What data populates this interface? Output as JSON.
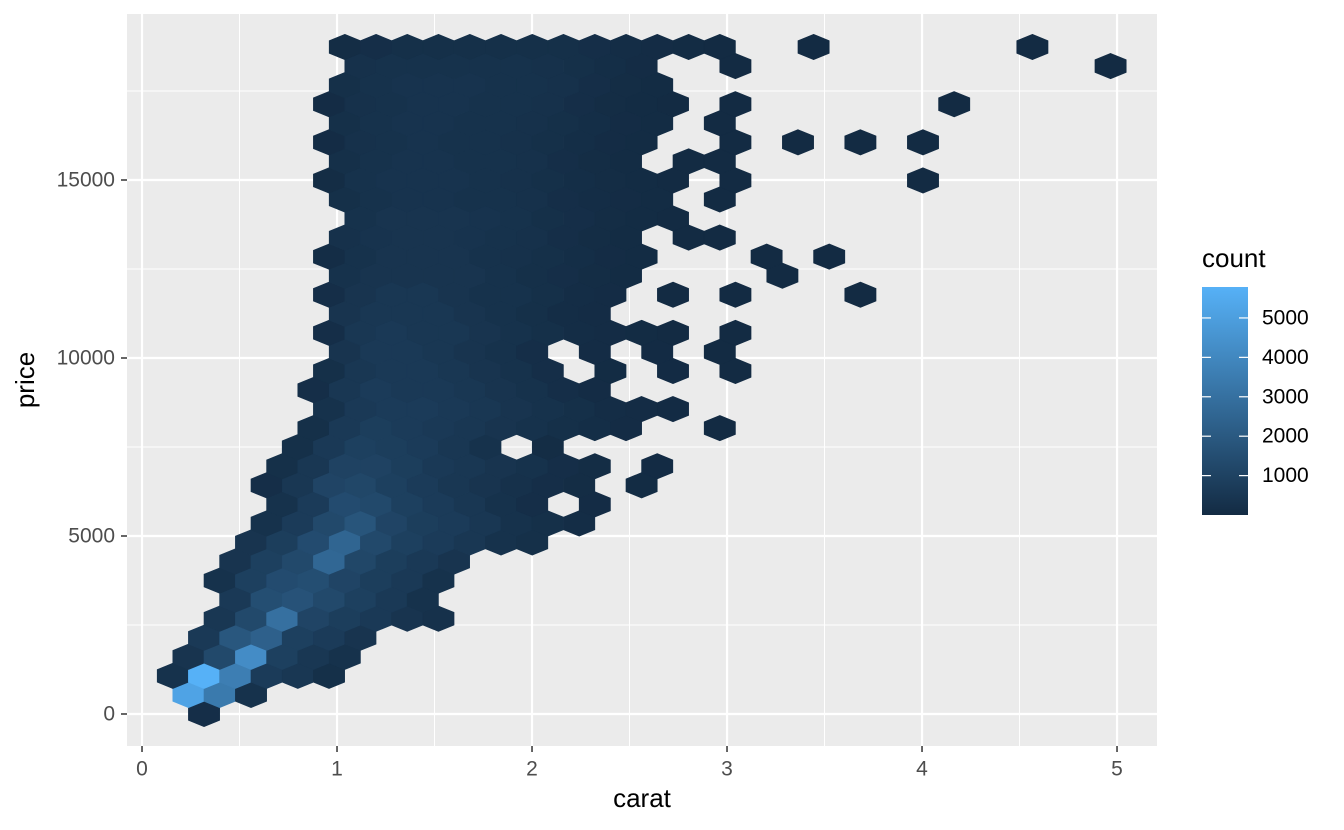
{
  "chart_data": {
    "type": "hexbin",
    "x_label": "carat",
    "y_label": "price",
    "xlim": [
      -0.077,
      5.205
    ],
    "ylim": [
      -899,
      19663
    ],
    "xticks": [
      0,
      1,
      2,
      3,
      4,
      5
    ],
    "yticks": [
      0,
      5000,
      10000,
      15000
    ],
    "xminor": [
      0.5,
      1.5,
      2.5,
      3.5,
      4.5
    ],
    "yminor": [
      2500,
      7500,
      12500,
      17500
    ],
    "grid": true,
    "panel_color": "#EBEBEB",
    "colors": {
      "low": "#132B43",
      "high": "#56B1F7"
    },
    "clim": [
      1,
      5785
    ],
    "legend": {
      "title": "count",
      "ticks": [
        1000,
        2000,
        3000,
        4000,
        5000
      ],
      "position": "right"
    },
    "rows": [
      {
        "y": 0,
        "x": [
          0.318
        ],
        "count": [
          150
        ]
      },
      {
        "y": 535,
        "x": [
          0.238,
          0.398,
          0.559
        ],
        "count": [
          5200,
          3400,
          300
        ]
      },
      {
        "y": 1071,
        "x": [
          0.158,
          0.318,
          0.478,
          0.639,
          0.799,
          0.959
        ],
        "count": [
          300,
          5785,
          3600,
          700,
          500,
          200
        ]
      },
      {
        "y": 1606,
        "x": [
          0.238,
          0.398,
          0.559,
          0.719,
          0.879,
          1.04
        ],
        "count": [
          400,
          1300,
          4200,
          900,
          500,
          300
        ]
      },
      {
        "y": 2141,
        "x": [
          0.318,
          0.478,
          0.639,
          0.799,
          0.959,
          1.12
        ],
        "count": [
          600,
          1900,
          2300,
          900,
          700,
          400
        ]
      },
      {
        "y": 2677,
        "x": [
          0.398,
          0.559,
          0.719,
          0.879,
          1.04,
          1.2,
          1.36,
          1.52
        ],
        "count": [
          500,
          1300,
          3000,
          1100,
          800,
          600,
          400,
          250
        ]
      },
      {
        "y": 3212,
        "x": [
          0.478,
          0.639,
          0.799,
          0.959,
          1.12,
          1.28,
          1.44
        ],
        "count": [
          600,
          1500,
          1700,
          1300,
          900,
          600,
          300
        ]
      },
      {
        "y": 3747,
        "x": [
          0.398,
          0.559,
          0.719,
          0.879,
          1.04,
          1.2,
          1.36,
          1.52
        ],
        "count": [
          300,
          900,
          1400,
          1500,
          1100,
          800,
          600,
          300
        ]
      },
      {
        "y": 4282,
        "x": [
          0.478,
          0.639,
          0.799,
          0.959,
          1.12,
          1.28,
          1.44,
          1.6
        ],
        "count": [
          400,
          900,
          1300,
          2600,
          1200,
          800,
          600,
          400
        ]
      },
      {
        "y": 4818,
        "x": [
          0.559,
          0.719,
          0.879,
          1.04,
          1.2,
          1.36,
          1.52,
          1.681,
          1.841,
          2.001
        ],
        "count": [
          400,
          800,
          1400,
          2500,
          1300,
          900,
          700,
          500,
          300,
          200
        ]
      },
      {
        "y": 5353,
        "x": [
          0.639,
          0.799,
          0.959,
          1.12,
          1.28,
          1.44,
          1.6,
          1.761,
          1.921,
          2.081,
          2.242
        ],
        "count": [
          300,
          700,
          1300,
          1800,
          1100,
          800,
          700,
          500,
          300,
          200,
          100
        ]
      },
      {
        "y": 5888,
        "x": [
          0.719,
          0.879,
          1.04,
          1.2,
          1.36,
          1.52,
          1.681,
          1.841,
          2.001,
          2.322
        ],
        "count": [
          300,
          700,
          1400,
          1300,
          900,
          700,
          500,
          300,
          150,
          60
        ]
      },
      {
        "y": 6424,
        "x": [
          0.639,
          0.799,
          0.959,
          1.12,
          1.28,
          1.44,
          1.6,
          1.761,
          1.921,
          2.081,
          2.242,
          2.562
        ],
        "count": [
          150,
          500,
          1100,
          1200,
          900,
          700,
          500,
          400,
          250,
          150,
          80,
          30
        ]
      },
      {
        "y": 6959,
        "x": [
          0.719,
          0.879,
          1.04,
          1.2,
          1.36,
          1.52,
          1.681,
          1.841,
          2.001,
          2.161,
          2.322,
          2.642
        ],
        "count": [
          200,
          500,
          1000,
          1000,
          800,
          600,
          500,
          400,
          300,
          150,
          80,
          20
        ]
      },
      {
        "y": 7494,
        "x": [
          0.799,
          0.959,
          1.12,
          1.28,
          1.44,
          1.6,
          1.761,
          2.081
        ],
        "count": [
          200,
          600,
          900,
          800,
          700,
          500,
          300,
          80
        ]
      },
      {
        "y": 8030,
        "x": [
          0.879,
          1.04,
          1.2,
          1.36,
          1.52,
          1.681,
          1.841,
          2.001,
          2.161,
          2.322,
          2.482,
          2.963
        ],
        "count": [
          200,
          600,
          800,
          700,
          600,
          500,
          400,
          300,
          200,
          120,
          60,
          15
        ]
      },
      {
        "y": 8565,
        "x": [
          0.959,
          1.12,
          1.28,
          1.44,
          1.6,
          1.761,
          1.921,
          2.081,
          2.242,
          2.402,
          2.562,
          2.723
        ],
        "count": [
          300,
          600,
          700,
          700,
          600,
          500,
          400,
          300,
          200,
          100,
          50,
          20
        ]
      },
      {
        "y": 9100,
        "x": [
          0.879,
          1.04,
          1.2,
          1.36,
          1.52,
          1.681,
          1.841,
          2.001,
          2.161,
          2.322
        ],
        "count": [
          150,
          500,
          700,
          600,
          600,
          500,
          400,
          300,
          150,
          60
        ]
      },
      {
        "y": 9635,
        "x": [
          0.959,
          1.12,
          1.28,
          1.44,
          1.6,
          1.761,
          1.921,
          2.081,
          2.402,
          2.723,
          3.043
        ],
        "count": [
          200,
          500,
          600,
          600,
          500,
          400,
          300,
          150,
          40,
          20,
          10
        ]
      },
      {
        "y": 10171,
        "x": [
          1.04,
          1.2,
          1.36,
          1.52,
          1.681,
          1.841,
          2.001,
          2.322,
          2.642,
          2.963
        ],
        "count": [
          400,
          600,
          600,
          500,
          400,
          300,
          150,
          50,
          20,
          10
        ]
      },
      {
        "y": 10706,
        "x": [
          0.959,
          1.12,
          1.28,
          1.44,
          1.6,
          1.761,
          1.921,
          2.081,
          2.242,
          2.402,
          2.562,
          2.723,
          3.043
        ],
        "count": [
          150,
          500,
          600,
          500,
          500,
          400,
          300,
          200,
          100,
          50,
          30,
          15,
          8
        ]
      },
      {
        "y": 11241,
        "x": [
          1.04,
          1.2,
          1.36,
          1.52,
          1.681,
          1.841,
          2.001,
          2.161,
          2.322
        ],
        "count": [
          400,
          500,
          500,
          500,
          400,
          300,
          200,
          100,
          50
        ]
      },
      {
        "y": 11777,
        "x": [
          0.959,
          1.12,
          1.28,
          1.44,
          1.6,
          1.761,
          1.921,
          2.081,
          2.242,
          2.402,
          2.723,
          3.043,
          3.684
        ],
        "count": [
          150,
          400,
          500,
          500,
          400,
          300,
          300,
          200,
          100,
          50,
          10,
          8,
          3
        ]
      },
      {
        "y": 12312,
        "x": [
          1.04,
          1.2,
          1.36,
          1.52,
          1.681,
          1.841,
          2.001,
          2.161,
          2.322,
          2.482,
          3.284
        ],
        "count": [
          300,
          400,
          400,
          400,
          400,
          300,
          200,
          150,
          80,
          30,
          2
        ]
      },
      {
        "y": 12847,
        "x": [
          0.959,
          1.12,
          1.28,
          1.44,
          1.6,
          1.761,
          1.921,
          2.081,
          2.242,
          2.402,
          2.562,
          3.203,
          3.524
        ],
        "count": [
          100,
          300,
          400,
          400,
          400,
          300,
          250,
          200,
          120,
          60,
          30,
          3,
          2
        ]
      },
      {
        "y": 13383,
        "x": [
          1.04,
          1.2,
          1.36,
          1.52,
          1.681,
          1.841,
          2.001,
          2.161,
          2.322,
          2.482,
          2.803,
          2.963
        ],
        "count": [
          250,
          350,
          400,
          400,
          350,
          300,
          250,
          150,
          80,
          40,
          10,
          6
        ]
      },
      {
        "y": 13918,
        "x": [
          1.12,
          1.28,
          1.44,
          1.6,
          1.761,
          1.921,
          2.081,
          2.242,
          2.402,
          2.562,
          2.723
        ],
        "count": [
          300,
          400,
          400,
          400,
          350,
          300,
          200,
          150,
          80,
          40,
          15
        ]
      },
      {
        "y": 14453,
        "x": [
          1.04,
          1.2,
          1.36,
          1.52,
          1.681,
          1.841,
          2.001,
          2.161,
          2.322,
          2.482,
          2.642,
          2.963
        ],
        "count": [
          200,
          300,
          350,
          350,
          300,
          300,
          250,
          150,
          100,
          60,
          30,
          8
        ]
      },
      {
        "y": 14988,
        "x": [
          0.959,
          1.12,
          1.28,
          1.44,
          1.6,
          1.761,
          1.921,
          2.081,
          2.242,
          2.402,
          2.562,
          2.723,
          3.043,
          4.005
        ],
        "count": [
          80,
          300,
          350,
          350,
          350,
          300,
          250,
          200,
          120,
          80,
          40,
          15,
          10,
          2
        ]
      },
      {
        "y": 15524,
        "x": [
          1.04,
          1.2,
          1.36,
          1.52,
          1.681,
          1.841,
          2.001,
          2.161,
          2.322,
          2.482,
          2.803,
          2.963
        ],
        "count": [
          200,
          300,
          350,
          350,
          300,
          300,
          250,
          150,
          80,
          40,
          10,
          8
        ]
      },
      {
        "y": 16059,
        "x": [
          0.959,
          1.12,
          1.28,
          1.44,
          1.6,
          1.761,
          1.921,
          2.081,
          2.242,
          2.402,
          2.562,
          3.043,
          3.364,
          3.684,
          4.005
        ],
        "count": [
          60,
          250,
          300,
          350,
          300,
          300,
          250,
          200,
          120,
          60,
          30,
          8,
          2,
          2,
          3
        ]
      },
      {
        "y": 16594,
        "x": [
          1.04,
          1.2,
          1.36,
          1.52,
          1.681,
          1.841,
          2.001,
          2.161,
          2.322,
          2.482,
          2.642,
          2.963
        ],
        "count": [
          200,
          300,
          350,
          350,
          300,
          300,
          250,
          200,
          120,
          60,
          25,
          8
        ]
      },
      {
        "y": 17130,
        "x": [
          0.959,
          1.12,
          1.28,
          1.44,
          1.6,
          1.761,
          1.921,
          2.081,
          2.242,
          2.402,
          2.562,
          2.723,
          3.043,
          4.165
        ],
        "count": [
          60,
          250,
          300,
          350,
          350,
          300,
          300,
          250,
          150,
          80,
          40,
          15,
          6,
          2
        ]
      },
      {
        "y": 17665,
        "x": [
          1.04,
          1.2,
          1.36,
          1.52,
          1.681,
          1.841,
          2.001,
          2.161,
          2.322,
          2.482,
          2.642
        ],
        "count": [
          200,
          300,
          350,
          350,
          350,
          300,
          300,
          250,
          150,
          70,
          30
        ]
      },
      {
        "y": 18200,
        "x": [
          1.12,
          1.28,
          1.44,
          1.6,
          1.761,
          1.921,
          2.081,
          2.242,
          2.402,
          2.562,
          3.043,
          4.967
        ],
        "count": [
          250,
          300,
          300,
          300,
          300,
          300,
          250,
          200,
          120,
          50,
          8,
          2
        ]
      },
      {
        "y": 18736,
        "x": [
          1.04,
          1.2,
          1.36,
          1.52,
          1.681,
          1.841,
          2.001,
          2.161,
          2.322,
          2.482,
          2.642,
          2.803,
          2.963,
          3.444,
          4.566
        ],
        "count": [
          80,
          150,
          200,
          200,
          200,
          200,
          200,
          200,
          150,
          100,
          60,
          30,
          15,
          3,
          2
        ]
      }
    ]
  }
}
